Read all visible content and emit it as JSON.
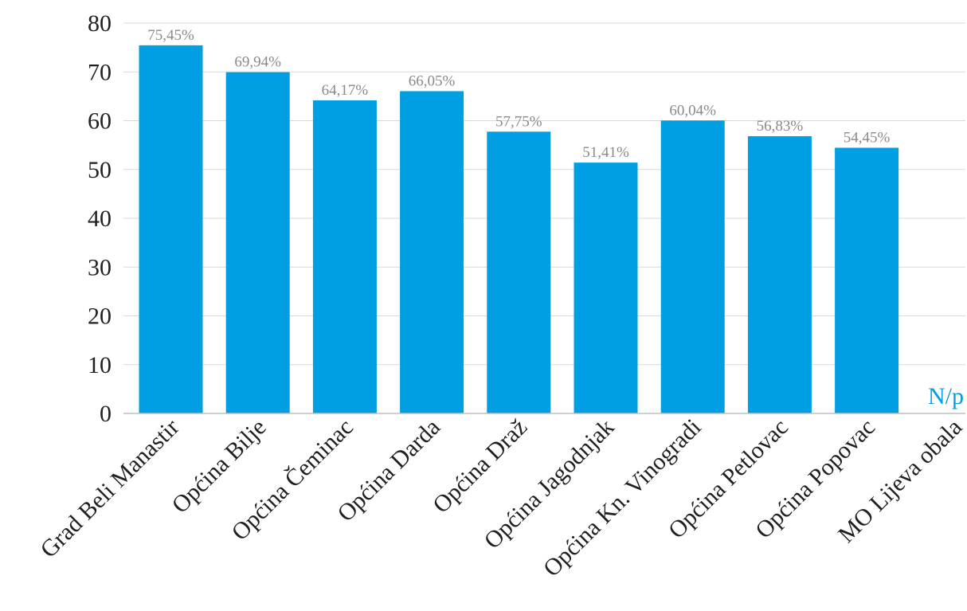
{
  "chart_data": {
    "type": "bar",
    "title": "",
    "xlabel": "",
    "ylabel": "",
    "ylim": [
      0,
      80
    ],
    "yticks": [
      0,
      10,
      20,
      30,
      40,
      50,
      60,
      70,
      80
    ],
    "grid": true,
    "bar_color": "#009fe3",
    "categories": [
      "Grad Beli Manastir",
      "Općina Bilje",
      "Općina Čeminac",
      "Općina Darda",
      "Općina Draž",
      "Općina Jagodnjak",
      "Općina Kn. Vinogradi",
      "Općina Petlovac",
      "Općina Popovac",
      "MO Lijeva obala"
    ],
    "values": [
      75.45,
      69.94,
      64.17,
      66.05,
      57.75,
      51.41,
      60.04,
      56.83,
      54.45,
      null
    ],
    "data_labels": [
      "75,45%",
      "69,94%",
      "64,17%",
      "66,05%",
      "57,75%",
      "51,41%",
      "60,04%",
      "56,83%",
      "54,45%",
      "N/p"
    ]
  }
}
